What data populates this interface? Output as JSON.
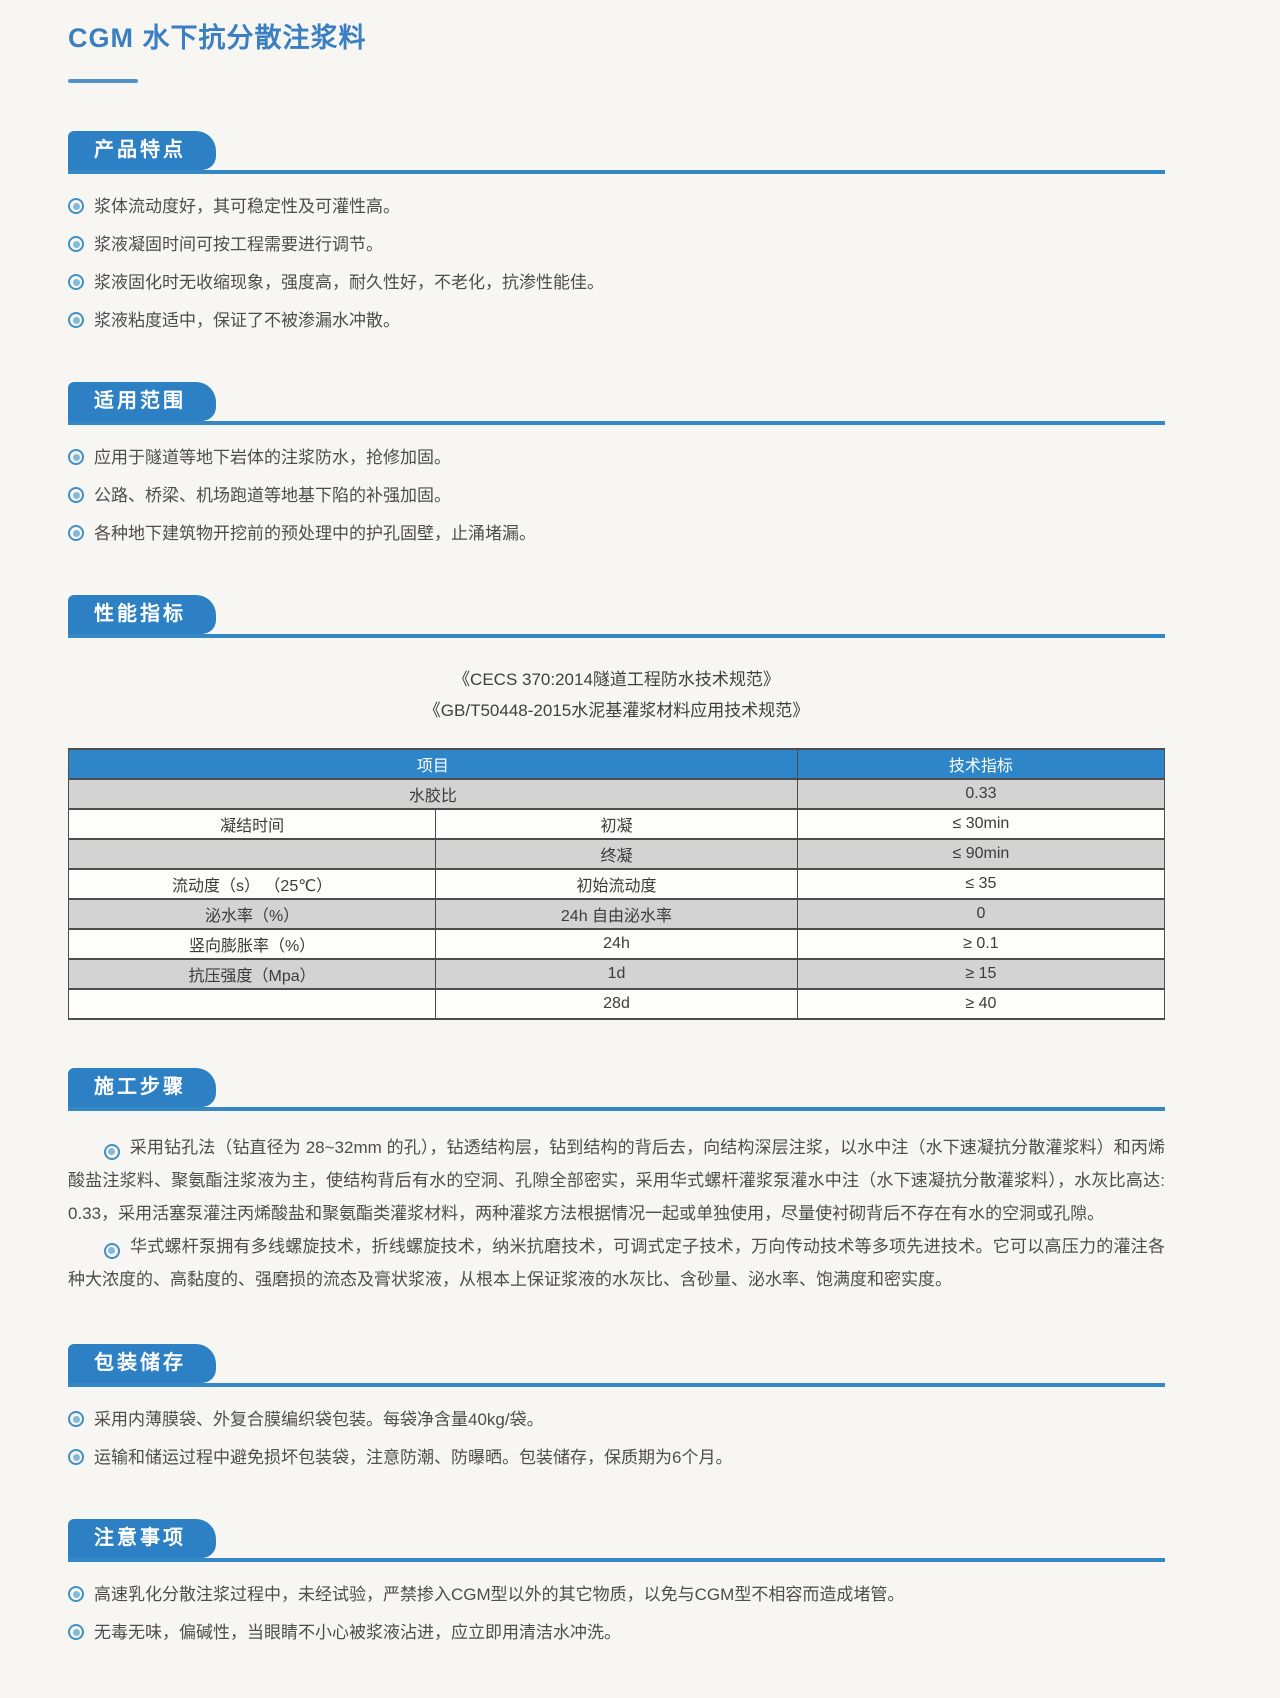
{
  "page": {
    "title": "CGM 水下抗分散注浆料"
  },
  "colors": {
    "accent_blue": "#2c80c3",
    "rule_blue": "#3488c6",
    "table_header_blue": "#2e86c8",
    "table_row_gray": "#d3d3d3",
    "title_blue": "#3a7fc1",
    "body_text": "#4d4d4d"
  },
  "icons": {
    "bullet": "double-circle-bullet-icon"
  },
  "sections": [
    {
      "heading": "产品特点",
      "bullets": [
        "浆体流动度好，其可稳定性及可灌性高。",
        "浆液凝固时间可按工程需要进行调节。",
        "浆液固化时无收缩现象，强度高，耐久性好，不老化，抗渗性能佳。",
        "浆液粘度适中，保证了不被渗漏水冲散。"
      ]
    },
    {
      "heading": "适用范围",
      "bullets": [
        "应用于隧道等地下岩体的注浆防水，抢修加固。",
        "公路、桥梁、机场跑道等地基下陷的补强加固。",
        "各种地下建筑物开挖前的预处理中的护孔固壁，止涌堵漏。"
      ]
    },
    {
      "heading": "性能指标",
      "standards": [
        "《CECS 370:2014隧道工程防水技术规范》",
        "《GB/T50448-2015水泥基灌浆材料应用技术规范》"
      ],
      "table": {
        "headers": [
          "项目",
          "技术指标"
        ],
        "rows": [
          {
            "cells": [
              {
                "text": "水胶比"
              },
              {
                "text": ""
              },
              {
                "text": "0.33"
              }
            ]
          },
          {
            "cells": [
              {
                "text": "凝结时间"
              },
              {
                "text": "初凝"
              },
              {
                "text": "≤ 30min"
              }
            ]
          },
          {
            "cells": [
              {
                "text": ""
              },
              {
                "text": "终凝"
              },
              {
                "text": "≤ 90min"
              }
            ]
          },
          {
            "cells": [
              {
                "text": "流动度（s） （25℃）"
              },
              {
                "text": "初始流动度"
              },
              {
                "text": "≤ 35"
              }
            ]
          },
          {
            "cells": [
              {
                "text": "泌水率（%）"
              },
              {
                "text": "24h 自由泌水率"
              },
              {
                "text": "0"
              }
            ]
          },
          {
            "cells": [
              {
                "text": "竖向膨胀率（%）"
              },
              {
                "text": "24h"
              },
              {
                "text": "≥ 0.1"
              }
            ]
          },
          {
            "cells": [
              {
                "text": "抗压强度（Mpa）"
              },
              {
                "text": "1d"
              },
              {
                "text": "≥ 15"
              }
            ]
          },
          {
            "cells": [
              {
                "text": ""
              },
              {
                "text": "28d"
              },
              {
                "text": "≥ 40"
              }
            ]
          }
        ]
      }
    },
    {
      "heading": "施工步骤",
      "paragraphs": [
        "采用钻孔法（钻直径为 28~32mm 的孔），钻透结构层，钻到结构的背后去，向结构深层注浆，以水中注（水下速凝抗分散灌浆料）和丙烯酸盐注浆料、聚氨酯注浆液为主，使结构背后有水的空洞、孔隙全部密实，采用华式螺杆灌浆泵灌水中注（水下速凝抗分散灌浆料），水灰比高达: 0.33，采用活塞泵灌注丙烯酸盐和聚氨酯类灌浆材料，两种灌浆方法根据情况一起或单独使用，尽量使衬砌背后不存在有水的空洞或孔隙。",
        "华式螺杆泵拥有多线螺旋技术，折线螺旋技术，纳米抗磨技术，可调式定子技术，万向传动技术等多项先进技术。它可以高压力的灌注各种大浓度的、高黏度的、强磨损的流态及膏状浆液，从根本上保证浆液的水灰比、含砂量、泌水率、饱满度和密实度。"
      ]
    },
    {
      "heading": "包装储存",
      "bullets": [
        "采用内薄膜袋、外复合膜编织袋包装。每袋净含量40kg/袋。",
        "运输和储运过程中避免损坏包装袋，注意防潮、防曝晒。包装储存，保质期为6个月。"
      ]
    },
    {
      "heading": "注意事项",
      "bullets": [
        "高速乳化分散注浆过程中，未经试验，严禁掺入CGM型以外的其它物质，以免与CGM型不相容而造成堵管。",
        "无毒无味，偏碱性，当眼睛不小心被浆液沾进，应立即用清洁水冲洗。"
      ]
    }
  ]
}
